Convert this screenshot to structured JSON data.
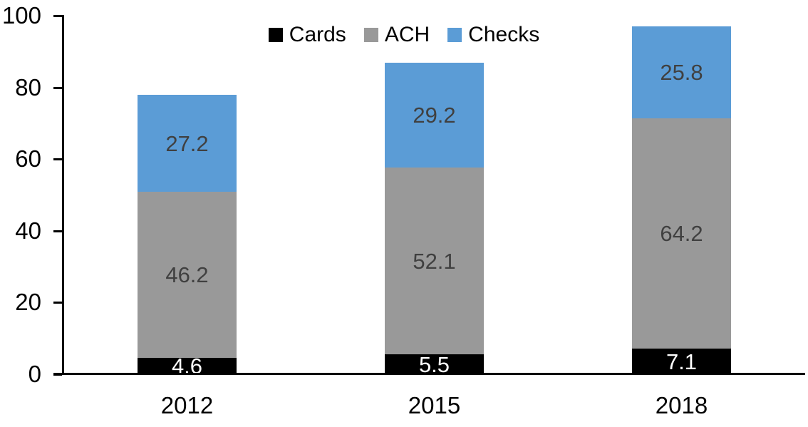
{
  "chart_data": {
    "type": "bar",
    "stacked": true,
    "categories": [
      "2012",
      "2015",
      "2018"
    ],
    "series": [
      {
        "name": "Cards",
        "color": "#000000",
        "label_color": "#ffffff",
        "values": [
          4.6,
          5.5,
          7.1
        ]
      },
      {
        "name": "ACH",
        "color": "#999999",
        "label_color": "#404040",
        "values": [
          46.2,
          52.1,
          64.2
        ]
      },
      {
        "name": "Checks",
        "color": "#5b9cd6",
        "label_color": "#404040",
        "values": [
          27.2,
          29.2,
          25.8
        ]
      }
    ],
    "ylim": [
      0,
      100
    ],
    "yticks": [
      0,
      20,
      40,
      60,
      80,
      100
    ],
    "grid": false,
    "legend_position": "top-center",
    "axis_color": "#000000",
    "background_color": "#ffffff",
    "data_label_format": "one-decimal"
  }
}
